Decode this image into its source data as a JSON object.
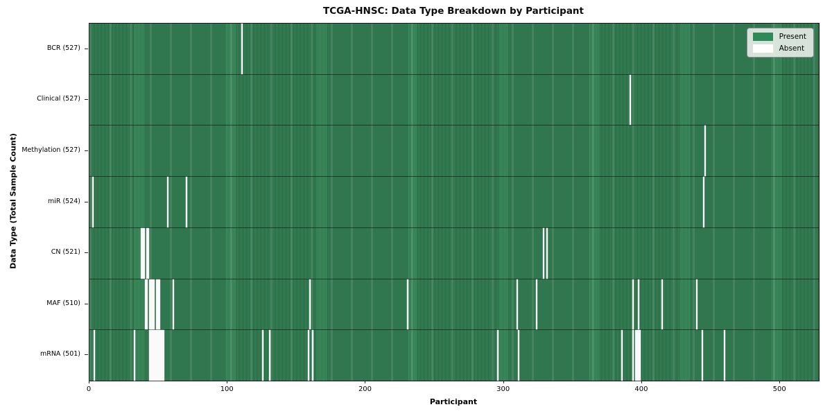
{
  "chart_data": {
    "type": "heatmap",
    "title": "TCGA-HNSC: Data Type Breakdown by Participant",
    "xlabel": "Participant",
    "ylabel": "Data Type (Total Sample Count)",
    "n_participants": 528,
    "xlim": [
      0,
      528
    ],
    "x_ticks": [
      0,
      100,
      200,
      300,
      400,
      500
    ],
    "grid": false,
    "legend_position": "upper right",
    "legend": [
      {
        "label": "Present",
        "color": "#2e8b57"
      },
      {
        "label": "Absent",
        "color": "#ffffff"
      }
    ],
    "colors": {
      "present": "#2e8b57",
      "absent": "#ffffff",
      "bar_fill_light": "#3f9061",
      "bar_edge_dark": "#225d3c",
      "legend_bg": "#edf0ed"
    },
    "rows": [
      {
        "data_type": "BCR",
        "label": "BCR (527)",
        "present_count": 527,
        "absent_participants": [
          110
        ]
      },
      {
        "data_type": "Clinical",
        "label": "Clinical (527)",
        "present_count": 527,
        "absent_participants": [
          391
        ]
      },
      {
        "data_type": "Methylation",
        "label": "Methylation (527)",
        "present_count": 527,
        "absent_participants": [
          445
        ]
      },
      {
        "data_type": "miR",
        "label": "miR (524)",
        "present_count": 524,
        "absent_participants": [
          2,
          56,
          70,
          444
        ]
      },
      {
        "data_type": "CN",
        "label": "CN (521)",
        "present_count": 521,
        "absent_participants": [
          37,
          38,
          39,
          41,
          42,
          328,
          331
        ]
      },
      {
        "data_type": "MAF",
        "label": "MAF (510)",
        "present_count": 510,
        "absent_participants": [
          40,
          41,
          43,
          44,
          45,
          46,
          48,
          49,
          50,
          60,
          159,
          230,
          309,
          323,
          393,
          397,
          414,
          439
        ]
      },
      {
        "data_type": "mRNA",
        "label": "mRNA (501)",
        "present_count": 501,
        "absent_participants": [
          3,
          32,
          43,
          44,
          45,
          46,
          47,
          48,
          49,
          50,
          51,
          52,
          53,
          125,
          130,
          158,
          161,
          295,
          310,
          385,
          393,
          395,
          396,
          397,
          398,
          443,
          459
        ]
      }
    ]
  }
}
